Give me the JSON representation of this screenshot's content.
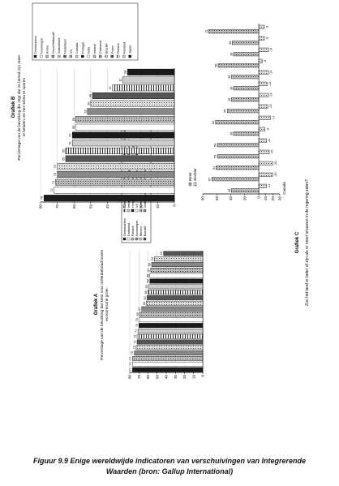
{
  "caption": {
    "line1": "Figuur 9.9 Enige wereldwijde indicatoren van verschuivingen van Integrerende",
    "line2": "Waarden (bron: Gallup International)"
  },
  "chart_data": [
    {
      "type": "bar",
      "title": "Grafiek A",
      "subtitle": "Percentage van de bevolking dat kiest voor milieubehoud boven economische groei.",
      "ylim": [
        0,
        80
      ],
      "yticks": [
        0,
        10,
        20,
        30,
        40,
        50,
        60,
        70,
        80
      ],
      "grid": true,
      "categories": [
        "Denemarken",
        "Duitsland",
        "Finland",
        "Noorwegen",
        "Mexico",
        "Brazilië",
        "Canada",
        "Ierland",
        "Hongarije",
        "VS",
        "Korea",
        "Zwitserland",
        "Polen",
        "Portugal",
        "India",
        "Nederland",
        "Japan",
        "Rusland",
        "Groot Brittannië",
        "Uruguay",
        "Nigeria",
        "Turkije"
      ],
      "values": [
        77,
        77,
        77,
        75,
        73,
        72,
        72,
        71,
        70,
        70,
        69,
        67,
        62,
        61,
        60,
        59,
        58,
        58,
        57,
        56,
        53,
        43
      ],
      "value_labels": [
        "77",
        "77",
        "77",
        "75",
        "73",
        "72",
        "72",
        "71",
        "70",
        "70",
        "69",
        "67",
        "62",
        "61",
        "60",
        "59",
        "58",
        "58",
        "57",
        "56",
        "53",
        "43"
      ],
      "legend": {
        "placement": "right",
        "entries": [
          "Denemarken",
          "Duitsland",
          "Finland",
          "Noorwegen",
          "Mexico",
          "Brazilië",
          "Canada",
          "Ierland",
          "Hongarije",
          "VS",
          "Korea",
          "Zwitserland",
          "Polen",
          "Portugal",
          "India",
          "Nederland",
          "Japan",
          "Rusland",
          "Groot Brittannië",
          "Uruguay",
          "Nigeria",
          "Turkije"
        ]
      }
    },
    {
      "type": "bar",
      "title": "Grafiek B",
      "subtitle": "Percentage van de bevolking die zegt dat ze bereid zijn meer te betalen om het milieu te sparen",
      "ylim": [
        0,
        80
      ],
      "yticks": [
        0,
        10,
        20,
        30,
        40,
        50,
        60,
        70,
        80
      ],
      "grid": true,
      "categories": [
        "Denemarken",
        "Noorwegen",
        "Korea",
        "Groot Brittannië",
        "Zwitserland",
        "Nederland",
        "VS",
        "Canada",
        "Portugal",
        "India",
        "Ierland",
        "Duitsland",
        "Brazilië",
        "Polen",
        "Finland",
        "Rusland",
        "Japan"
      ],
      "values": [
        78,
        72,
        71,
        70,
        70,
        65,
        65,
        61,
        61,
        59,
        59,
        52,
        50,
        49,
        37,
        31,
        28
      ],
      "value_labels": [
        "78",
        "72",
        "71",
        "70",
        "70",
        "65",
        "65",
        "61",
        "61",
        "59",
        "59",
        "52",
        "50",
        "49",
        "37",
        "31",
        "28"
      ],
      "legend": {
        "placement": "right",
        "entries": [
          "Denemarken",
          "Noorwegen",
          "Korea",
          "Groot Brittannië",
          "Zwitserland",
          "Nederland",
          "VS",
          "Canada",
          "Portugal",
          "India",
          "Ierland",
          "Duitsland",
          "Brazilië",
          "Polen",
          "Finland",
          "Rusland",
          "Japan"
        ]
      }
    },
    {
      "type": "bar",
      "title": "Grafiek C",
      "subtitle": "Zou het land er beter af zijn als er meer vrouwen in de regering zaten?",
      "ylim": [
        -30,
        80
      ],
      "yticks": [
        -30,
        -20,
        -10,
        0,
        20,
        40,
        60,
        80
      ],
      "grid": false,
      "legend": {
        "placement": "top-left",
        "entries": [
          "Beter",
          "slechter"
        ]
      },
      "categories": [
        "Canada",
        "",
        "",
        "",
        "",
        "",
        "",
        "",
        "",
        "",
        "",
        "",
        "",
        "",
        ""
      ],
      "series": [
        {
          "name": "Beter",
          "values": [
            39,
            67,
            61,
            59,
            59,
            36,
            62,
            45,
            39,
            36,
            39,
            58,
            36,
            38,
            72
          ]
        },
        {
          "name": "slechter",
          "values": [
            -11,
            -20,
            -20,
            -15,
            -11,
            -9,
            -17,
            -13,
            -14,
            -12,
            -14,
            -5,
            -14,
            -8,
            -8
          ]
        }
      ],
      "value_labels": {
        "Beter": [
          "39",
          "67",
          "61",
          "59",
          "59",
          "36",
          "62",
          "45",
          "39",
          "36",
          "39",
          "58",
          "36",
          "38",
          "72"
        ],
        "slechter": [
          "-11",
          "-20",
          "-20",
          "-15",
          "-11",
          "-9",
          "-17",
          "-13",
          "-14",
          "-12",
          "-14",
          "-5",
          "-14",
          "-8",
          "-8"
        ]
      }
    }
  ]
}
